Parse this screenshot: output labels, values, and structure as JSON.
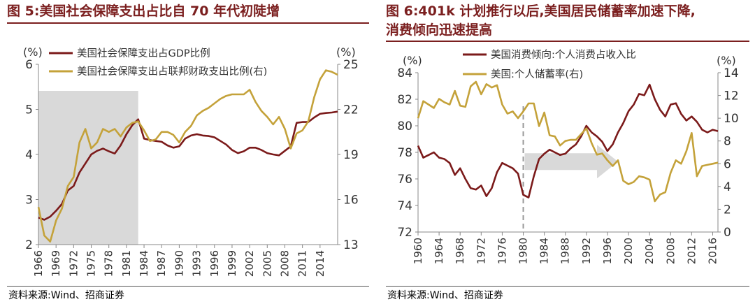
{
  "left": {
    "title": "图 5:美国社会保障支出占比自 70 年代初陡增",
    "source": "资料来源:Wind、招商证券",
    "chart_data": {
      "type": "line",
      "left_unit": "(%)",
      "right_unit": "(%)",
      "x_ticks": [
        "1966",
        "1969",
        "1972",
        "1975",
        "1978",
        "1981",
        "1984",
        "1987",
        "1990",
        "1993",
        "1996",
        "1999",
        "2002",
        "2005",
        "2008",
        "2011",
        "2014"
      ],
      "left_ticks": [
        "2",
        "3",
        "4",
        "5",
        "6"
      ],
      "right_ticks": [
        "13",
        "16",
        "19",
        "22",
        "25"
      ],
      "xlim": [
        1966,
        2017
      ],
      "ylim_left": [
        2,
        6
      ],
      "ylim_right": [
        13,
        25
      ],
      "shaded_range": [
        1966,
        1983
      ],
      "series": [
        {
          "name": "美国社会保障支出占GDP比例",
          "axis": "left",
          "color": "#7b1a1a",
          "x": [
            1966,
            1967,
            1968,
            1969,
            1970,
            1971,
            1972,
            1973,
            1974,
            1975,
            1976,
            1977,
            1978,
            1979,
            1980,
            1981,
            1982,
            1983,
            1984,
            1985,
            1986,
            1987,
            1988,
            1989,
            1990,
            1991,
            1992,
            1993,
            1994,
            1995,
            1996,
            1997,
            1998,
            1999,
            2000,
            2001,
            2002,
            2003,
            2004,
            2005,
            2006,
            2007,
            2008,
            2009,
            2010,
            2011,
            2012,
            2013,
            2014,
            2015,
            2016,
            2017
          ],
          "y": [
            2.6,
            2.55,
            2.62,
            2.75,
            2.9,
            3.2,
            3.3,
            3.6,
            3.8,
            4.0,
            4.08,
            4.13,
            4.07,
            4.02,
            4.2,
            4.45,
            4.65,
            4.78,
            4.35,
            4.32,
            4.3,
            4.28,
            4.2,
            4.15,
            4.18,
            4.35,
            4.42,
            4.45,
            4.42,
            4.41,
            4.38,
            4.3,
            4.22,
            4.1,
            4.03,
            4.07,
            4.15,
            4.15,
            4.1,
            4.03,
            4.0,
            3.98,
            4.08,
            4.18,
            4.7,
            4.72,
            4.72,
            4.82,
            4.9,
            4.92,
            4.93,
            4.95
          ]
        },
        {
          "name": "美国社会保障支出占联邦财政支出比例(右)",
          "axis": "right",
          "color": "#c4a23a",
          "x": [
            1966,
            1967,
            1968,
            1969,
            1970,
            1971,
            1972,
            1973,
            1974,
            1975,
            1976,
            1977,
            1978,
            1979,
            1980,
            1981,
            1982,
            1983,
            1984,
            1985,
            1986,
            1987,
            1988,
            1989,
            1990,
            1991,
            1992,
            1993,
            1994,
            1995,
            1996,
            1997,
            1998,
            1999,
            2000,
            2001,
            2002,
            2003,
            2004,
            2005,
            2006,
            2007,
            2008,
            2009,
            2010,
            2011,
            2012,
            2013,
            2014,
            2015,
            2016,
            2017
          ],
          "y": [
            15.5,
            13.6,
            13.2,
            14.6,
            15.4,
            16.9,
            17.5,
            19.8,
            20.7,
            19.4,
            19.8,
            20.7,
            20.5,
            20.7,
            20.2,
            20.8,
            21.1,
            21.2,
            20.6,
            19.9,
            20.0,
            20.5,
            20.5,
            20.3,
            19.8,
            20.5,
            20.9,
            21.6,
            21.9,
            22.1,
            22.4,
            22.7,
            22.9,
            23.0,
            23.0,
            23.0,
            23.3,
            22.5,
            21.9,
            21.5,
            21.0,
            21.5,
            20.7,
            19.4,
            20.4,
            20.6,
            21.2,
            22.8,
            24.0,
            24.6,
            24.5,
            24.3
          ]
        }
      ]
    }
  },
  "right": {
    "title_line1": "图 6:401k 计划推行以后,美国居民储蓄率加速下降,",
    "title_line2": "消费倾向迅速提高",
    "source": "资料来源:Wind、招商证券",
    "chart_data": {
      "type": "line",
      "left_unit": "(%)",
      "right_unit": "(%)",
      "x_ticks": [
        "1960",
        "1964",
        "1968",
        "1972",
        "1976",
        "1980",
        "1984",
        "1988",
        "1992",
        "1996",
        "2000",
        "2004",
        "2008",
        "2012",
        "2016"
      ],
      "left_ticks": [
        "72",
        "74",
        "76",
        "78",
        "80",
        "82",
        "84"
      ],
      "right_ticks": [
        "0",
        "2",
        "4",
        "6",
        "8",
        "10",
        "12",
        "14"
      ],
      "xlim": [
        1960,
        2017
      ],
      "ylim_left": [
        72,
        84
      ],
      "ylim_right": [
        0,
        14
      ],
      "vline_x": 1980,
      "arrow_range": [
        1980,
        1998
      ],
      "series": [
        {
          "name": "美国消费倾向:个人消费占收入比",
          "axis": "left",
          "color": "#7b1a1a",
          "x": [
            1960,
            1961,
            1962,
            1963,
            1964,
            1965,
            1966,
            1967,
            1968,
            1969,
            1970,
            1971,
            1972,
            1973,
            1974,
            1975,
            1976,
            1977,
            1978,
            1979,
            1980,
            1981,
            1982,
            1983,
            1984,
            1985,
            1986,
            1987,
            1988,
            1989,
            1990,
            1991,
            1992,
            1993,
            1994,
            1995,
            1996,
            1997,
            1998,
            1999,
            2000,
            2001,
            2002,
            2003,
            2004,
            2005,
            2006,
            2007,
            2008,
            2009,
            2010,
            2011,
            2012,
            2013,
            2014,
            2015,
            2016,
            2017
          ],
          "y": [
            78.5,
            77.6,
            77.8,
            78.0,
            77.6,
            77.5,
            77.2,
            76.3,
            76.8,
            76.0,
            75.3,
            75.2,
            75.5,
            74.7,
            75.3,
            76.5,
            77.2,
            77.0,
            76.8,
            76.4,
            74.8,
            74.6,
            76.2,
            77.5,
            77.9,
            78.2,
            78.0,
            77.8,
            77.9,
            78.3,
            78.6,
            79.2,
            80.0,
            79.5,
            79.2,
            78.8,
            78.1,
            78.6,
            79.5,
            80.2,
            81.1,
            81.6,
            82.4,
            82.3,
            83.1,
            82.0,
            81.2,
            80.7,
            81.6,
            81.7,
            80.9,
            80.4,
            80.7,
            80.3,
            79.7,
            79.5,
            79.7,
            79.6
          ]
        },
        {
          "name": "美国:个人储蓄率(右)",
          "axis": "right",
          "color": "#c4a23a",
          "x": [
            1960,
            1961,
            1962,
            1963,
            1964,
            1965,
            1966,
            1967,
            1968,
            1969,
            1970,
            1971,
            1972,
            1973,
            1974,
            1975,
            1976,
            1977,
            1978,
            1979,
            1980,
            1981,
            1982,
            1983,
            1984,
            1985,
            1986,
            1987,
            1988,
            1989,
            1990,
            1991,
            1992,
            1993,
            1994,
            1995,
            1996,
            1997,
            1998,
            1999,
            2000,
            2001,
            2002,
            2003,
            2004,
            2005,
            2006,
            2007,
            2008,
            2009,
            2010,
            2011,
            2012,
            2013,
            2014,
            2015,
            2016,
            2017
          ],
          "y": [
            10.0,
            11.5,
            11.2,
            10.9,
            11.7,
            11.4,
            11.2,
            12.4,
            11.1,
            11.0,
            12.8,
            13.2,
            12.1,
            13.0,
            12.7,
            12.9,
            11.2,
            10.4,
            10.6,
            10.0,
            10.6,
            11.3,
            11.3,
            9.3,
            10.5,
            8.5,
            8.4,
            7.6,
            8.0,
            8.1,
            8.1,
            8.6,
            9.1,
            7.8,
            6.8,
            6.9,
            6.3,
            5.8,
            6.3,
            4.5,
            4.2,
            4.4,
            4.9,
            4.8,
            4.6,
            2.7,
            3.3,
            3.5,
            5.2,
            6.3,
            6.0,
            7.1,
            8.7,
            4.9,
            5.8,
            5.9,
            6.0,
            6.1
          ]
        }
      ]
    }
  }
}
